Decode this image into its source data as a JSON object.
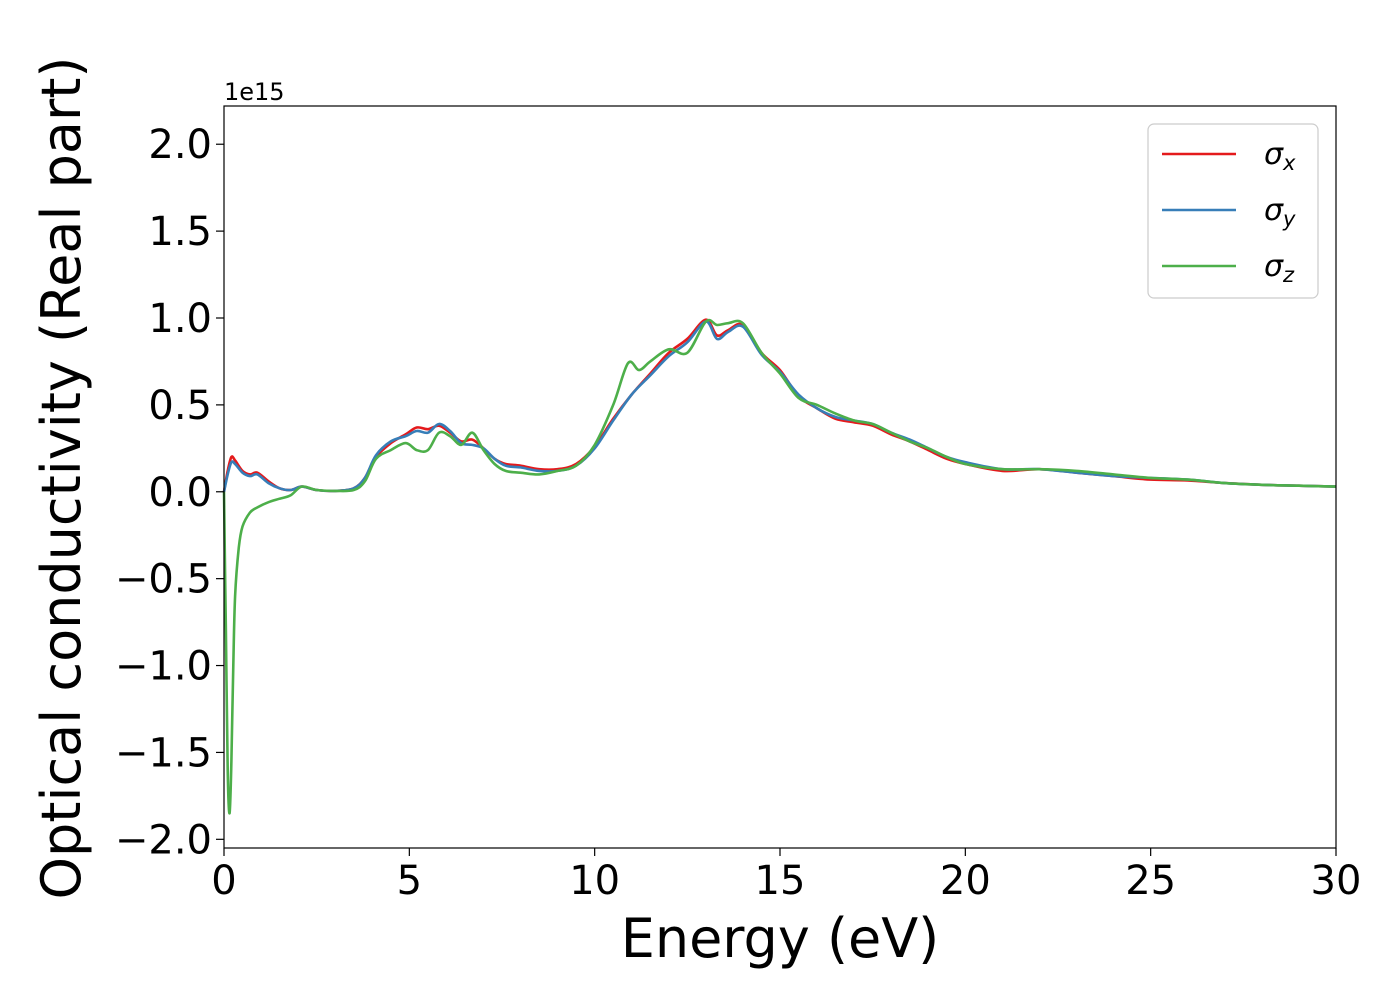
{
  "chart_data": {
    "type": "line",
    "xlabel": "Energy (eV)",
    "ylabel": "Optical conductivity (Real part)",
    "y_offset_label": "1e15",
    "xlim": [
      0,
      30
    ],
    "ylim": [
      -2.05,
      2.22
    ],
    "x_ticks": [
      0,
      5,
      10,
      15,
      20,
      25,
      30
    ],
    "x_tick_labels": [
      "0",
      "5",
      "10",
      "15",
      "20",
      "25",
      "30"
    ],
    "y_ticks": [
      -2.0,
      -1.5,
      -1.0,
      -0.5,
      0.0,
      0.5,
      1.0,
      1.5,
      2.0
    ],
    "y_tick_labels": [
      "−2.0",
      "−1.5",
      "−1.0",
      "−0.5",
      "0.0",
      "0.5",
      "1.0",
      "1.5",
      "2.0"
    ],
    "grid": false,
    "legend_position": "top-right",
    "series": [
      {
        "name": "σx",
        "legend_symbol": "σ",
        "legend_sub": "x",
        "color": "#e41a1c",
        "x": [
          0,
          0.1,
          0.2,
          0.3,
          0.5,
          0.7,
          0.9,
          1.2,
          1.5,
          1.8,
          2.1,
          2.5,
          3.0,
          3.5,
          3.8,
          4.1,
          4.5,
          4.9,
          5.2,
          5.5,
          5.8,
          6.1,
          6.4,
          6.7,
          7.0,
          7.3,
          7.6,
          8.0,
          8.5,
          9.0,
          9.5,
          10.0,
          10.5,
          11.0,
          11.5,
          12.0,
          12.5,
          13.0,
          13.3,
          13.6,
          14.0,
          14.5,
          15.0,
          15.5,
          16.0,
          16.5,
          17.0,
          17.5,
          18.0,
          18.5,
          19.0,
          19.5,
          20.0,
          21.0,
          22.0,
          23.0,
          24.0,
          25.0,
          26.0,
          27.0,
          28.0,
          29.0,
          30.0
        ],
        "values": [
          0.0,
          0.12,
          0.2,
          0.18,
          0.12,
          0.1,
          0.11,
          0.06,
          0.02,
          0.01,
          0.03,
          0.01,
          0.005,
          0.02,
          0.08,
          0.2,
          0.28,
          0.33,
          0.37,
          0.36,
          0.38,
          0.34,
          0.29,
          0.3,
          0.25,
          0.19,
          0.16,
          0.15,
          0.13,
          0.13,
          0.16,
          0.26,
          0.42,
          0.56,
          0.68,
          0.8,
          0.88,
          0.99,
          0.9,
          0.93,
          0.96,
          0.8,
          0.7,
          0.55,
          0.48,
          0.42,
          0.4,
          0.38,
          0.33,
          0.29,
          0.24,
          0.19,
          0.16,
          0.12,
          0.13,
          0.11,
          0.09,
          0.07,
          0.065,
          0.05,
          0.04,
          0.035,
          0.03
        ]
      },
      {
        "name": "σy",
        "legend_symbol": "σ",
        "legend_sub": "y",
        "color": "#377eb8",
        "x": [
          0,
          0.1,
          0.2,
          0.3,
          0.5,
          0.7,
          0.9,
          1.2,
          1.5,
          1.8,
          2.1,
          2.5,
          3.0,
          3.5,
          3.8,
          4.1,
          4.5,
          4.9,
          5.2,
          5.5,
          5.8,
          6.1,
          6.4,
          6.7,
          7.0,
          7.3,
          7.6,
          8.0,
          8.5,
          9.0,
          9.5,
          10.0,
          10.5,
          11.0,
          11.5,
          12.0,
          12.5,
          13.0,
          13.3,
          13.6,
          14.0,
          14.5,
          15.0,
          15.5,
          16.0,
          16.5,
          17.0,
          17.5,
          18.0,
          18.5,
          19.0,
          19.5,
          20.0,
          21.0,
          22.0,
          23.0,
          24.0,
          25.0,
          26.0,
          27.0,
          28.0,
          29.0,
          30.0
        ],
        "values": [
          0.0,
          0.1,
          0.17,
          0.16,
          0.11,
          0.09,
          0.1,
          0.05,
          0.02,
          0.01,
          0.03,
          0.01,
          0.005,
          0.02,
          0.08,
          0.21,
          0.29,
          0.32,
          0.35,
          0.34,
          0.39,
          0.35,
          0.28,
          0.27,
          0.25,
          0.19,
          0.15,
          0.14,
          0.12,
          0.12,
          0.15,
          0.25,
          0.41,
          0.56,
          0.67,
          0.78,
          0.86,
          0.98,
          0.88,
          0.92,
          0.95,
          0.79,
          0.69,
          0.56,
          0.48,
          0.43,
          0.41,
          0.39,
          0.34,
          0.3,
          0.25,
          0.2,
          0.17,
          0.13,
          0.13,
          0.11,
          0.09,
          0.08,
          0.07,
          0.05,
          0.04,
          0.035,
          0.03
        ]
      },
      {
        "name": "σz",
        "legend_symbol": "σ",
        "legend_sub": "z",
        "color": "#4daf4a",
        "x": [
          0,
          0.05,
          0.1,
          0.15,
          0.2,
          0.25,
          0.3,
          0.4,
          0.5,
          0.7,
          0.9,
          1.2,
          1.5,
          1.8,
          2.1,
          2.5,
          3.0,
          3.5,
          3.8,
          4.1,
          4.5,
          4.9,
          5.2,
          5.5,
          5.8,
          6.1,
          6.4,
          6.7,
          7.0,
          7.3,
          7.6,
          8.0,
          8.5,
          9.0,
          9.5,
          10.0,
          10.5,
          10.9,
          11.2,
          11.5,
          12.0,
          12.5,
          13.0,
          13.3,
          13.6,
          14.0,
          14.5,
          15.0,
          15.5,
          16.0,
          16.5,
          17.0,
          17.5,
          18.0,
          18.5,
          19.0,
          19.5,
          20.0,
          21.0,
          22.0,
          23.0,
          24.0,
          25.0,
          26.0,
          27.0,
          28.0,
          29.0,
          30.0
        ],
        "values": [
          0.0,
          -0.8,
          -1.6,
          -1.85,
          -1.55,
          -1.0,
          -0.6,
          -0.32,
          -0.2,
          -0.12,
          -0.09,
          -0.06,
          -0.04,
          -0.02,
          0.03,
          0.01,
          0.005,
          0.01,
          0.06,
          0.19,
          0.24,
          0.28,
          0.24,
          0.24,
          0.34,
          0.32,
          0.27,
          0.34,
          0.24,
          0.16,
          0.12,
          0.11,
          0.1,
          0.12,
          0.15,
          0.27,
          0.5,
          0.74,
          0.7,
          0.75,
          0.82,
          0.8,
          0.98,
          0.96,
          0.97,
          0.97,
          0.8,
          0.68,
          0.54,
          0.5,
          0.45,
          0.41,
          0.39,
          0.34,
          0.29,
          0.25,
          0.2,
          0.16,
          0.13,
          0.13,
          0.12,
          0.1,
          0.08,
          0.07,
          0.05,
          0.04,
          0.035,
          0.03
        ]
      }
    ]
  }
}
